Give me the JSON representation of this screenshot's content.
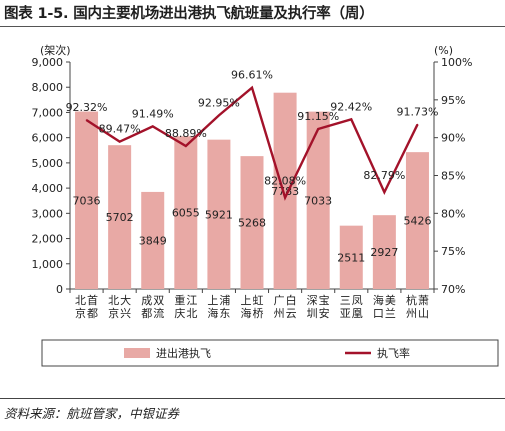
{
  "title": "图表 1-5. 国内主要机场进出港执飞航班量及执行率（周）",
  "source": "资料来源：航班管家，中银证券",
  "chart_data": {
    "type": "bar",
    "categories": [
      "北京首都",
      "北京大兴",
      "成都双流",
      "重庆江北",
      "上海浦东",
      "上海虹桥",
      "广州白云",
      "深圳宝安",
      "三亚凤凰",
      "海口美兰",
      "杭州萧山"
    ],
    "series": [
      {
        "name": "进出港执飞",
        "type": "bar",
        "axis": "left",
        "color": "#e8a9a5",
        "values": [
          7036,
          5702,
          3849,
          6055,
          5921,
          5268,
          7783,
          7033,
          2511,
          2927,
          5426
        ],
        "labels": [
          "7036",
          "5702",
          "3849",
          "6055",
          "5921",
          "5268",
          "7783",
          "7033",
          "2511",
          "2927",
          "5426"
        ]
      },
      {
        "name": "执飞率",
        "type": "line",
        "axis": "right",
        "color": "#a3122a",
        "values": [
          92.32,
          89.47,
          91.49,
          88.89,
          92.95,
          96.61,
          82.08,
          91.15,
          92.42,
          82.79,
          91.73
        ],
        "labels": [
          "92.32%",
          "89.47%",
          "91.49%",
          "88.89%",
          "92.95%",
          "96.61%",
          "82.08%",
          "91.15%",
          "92.42%",
          "82.79%",
          "91.73%"
        ]
      }
    ],
    "y_left": {
      "unit": "(架次)",
      "ylim": [
        0,
        9000
      ],
      "ticks": [
        "0",
        "1,000",
        "2,000",
        "3,000",
        "4,000",
        "5,000",
        "6,000",
        "7,000",
        "8,000",
        "9,000"
      ]
    },
    "y_right": {
      "unit": "(%)",
      "ylim": [
        70,
        100
      ],
      "ticks": [
        "70%",
        "75%",
        "80%",
        "85%",
        "90%",
        "95%",
        "100%"
      ]
    },
    "grid": false,
    "legend": "bottom"
  }
}
